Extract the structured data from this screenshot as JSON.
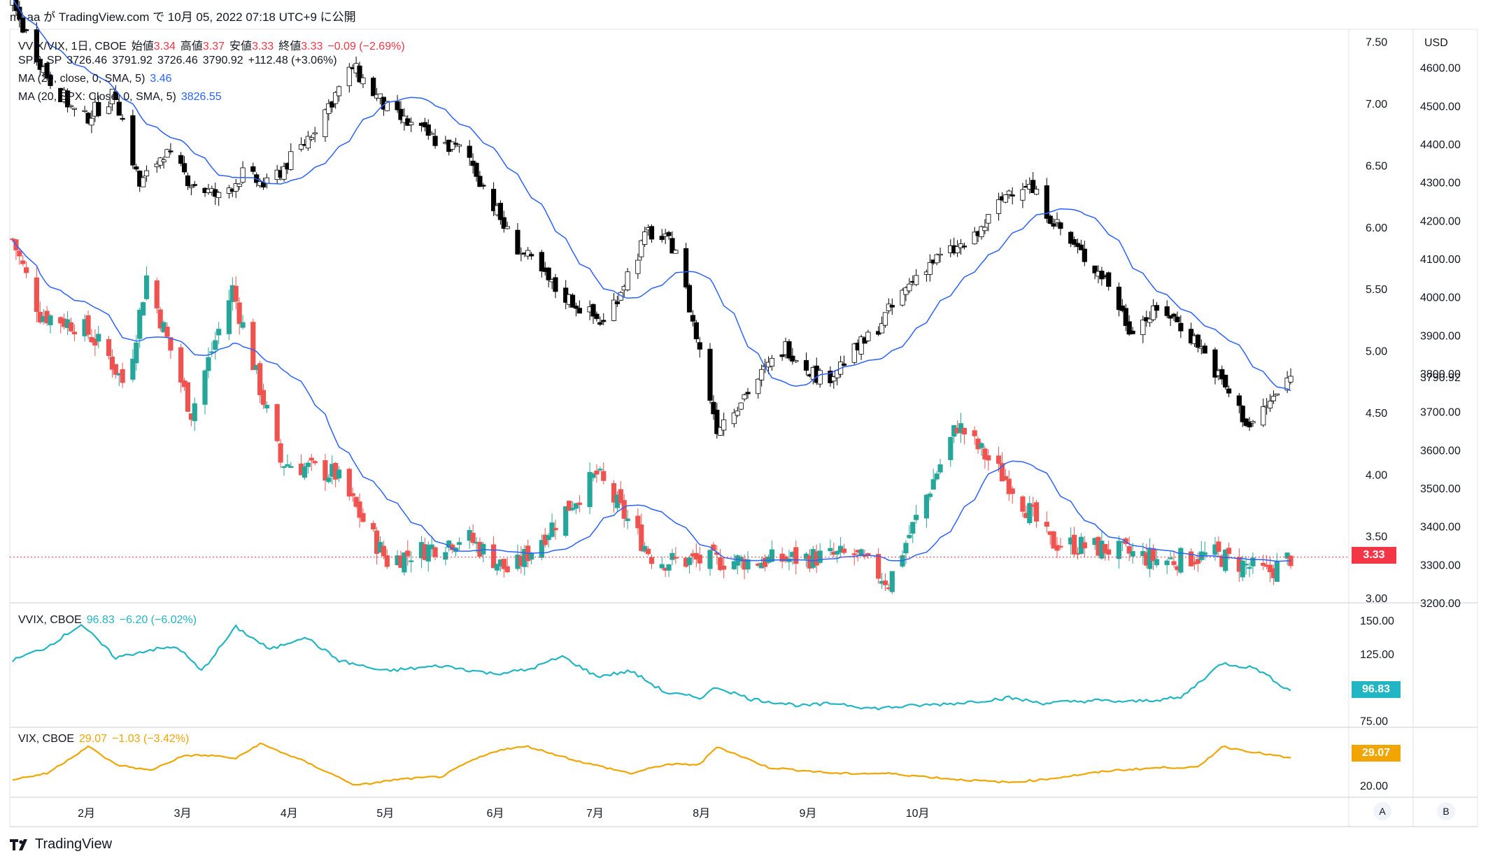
{
  "header": {
    "text": "mf-aa が TradingView.com で 10月 05, 2022 07:18 UTC+9 に公開"
  },
  "legend": {
    "main": {
      "symbol": "VVIX/VIX, 1日, CBOE",
      "open_label": "始値",
      "open": "3.34",
      "high_label": "高値",
      "high": "3.37",
      "low_label": "安値",
      "low": "3.33",
      "close_label": "終値",
      "close": "3.33",
      "change": "−0.09 (−2.69%)"
    },
    "spx": {
      "symbol": "SPX, SP",
      "o": "3726.46",
      "h": "3791.92",
      "l": "3726.46",
      "c": "3790.92",
      "chg": "+112.48 (+3.06%)"
    },
    "ma1": {
      "label": "MA (20, close, 0, SMA, 5)",
      "value": "3.46"
    },
    "ma2": {
      "label": "MA (20, SPX: Close, 0, SMA, 5)",
      "value": "3826.55"
    },
    "vvix": {
      "label": "VVIX, CBOE",
      "value": "96.83",
      "chg": "−6.20 (−6.02%)"
    },
    "vix": {
      "label": "VIX, CBOE",
      "value": "29.07",
      "chg": "−1.03 (−3.42%)"
    }
  },
  "axes": {
    "right1": [
      "7.50",
      "7.00",
      "6.50",
      "6.00",
      "5.50",
      "5.00",
      "4.50",
      "4.00",
      "3.50",
      "3.00"
    ],
    "right2_title": "USD",
    "right2": [
      "4600.00",
      "4500.00",
      "4400.00",
      "4300.00",
      "4200.00",
      "4100.00",
      "4000.00",
      "3900.00",
      "3800.00",
      "3700.00",
      "3600.00",
      "3500.00",
      "3400.00",
      "3300.00",
      "3200.00"
    ],
    "spx_last": "3790.92",
    "vvix_axis": [
      "150.00",
      "125.00",
      "75.00"
    ],
    "vix_axis": [
      "20.00"
    ],
    "months": [
      "2月",
      "3月",
      "4月",
      "5月",
      "6月",
      "7月",
      "8月",
      "9月",
      "10月"
    ],
    "buttons": [
      "A",
      "B"
    ]
  },
  "tags": {
    "ratio": "3.33",
    "vvix": "96.83",
    "vix": "29.07"
  },
  "colors": {
    "up": "#26a69a",
    "down": "#ef5350",
    "ma": "#2962ff",
    "vvix": "#22b5c4",
    "vix": "#f0a500",
    "grid": "#e0e3eb",
    "tag_ratio": "#f23645"
  },
  "brand": "TradingView",
  "chart_data": [
    {
      "type": "candlestick",
      "name": "VVIX/VIX",
      "anchors_day_value": [
        [
          0,
          5.9
        ],
        [
          8,
          5.3
        ],
        [
          20,
          5.2
        ],
        [
          27,
          5.0
        ],
        [
          33,
          4.7
        ],
        [
          39,
          5.6
        ],
        [
          52,
          4.5
        ],
        [
          64,
          5.5
        ],
        [
          78,
          4.1
        ],
        [
          94,
          4.0
        ],
        [
          109,
          3.3
        ],
        [
          132,
          3.5
        ],
        [
          145,
          3.2
        ],
        [
          170,
          4.0
        ],
        [
          187,
          3.3
        ],
        [
          200,
          3.3
        ],
        [
          218,
          3.3
        ],
        [
          245,
          3.35
        ],
        [
          255,
          3.13
        ],
        [
          275,
          4.4
        ],
        [
          291,
          3.9
        ],
        [
          302,
          3.45
        ],
        [
          318,
          3.4
        ],
        [
          335,
          3.3
        ],
        [
          350,
          3.35
        ],
        [
          365,
          3.2
        ],
        [
          372,
          3.33
        ]
      ],
      "ma_window": 20,
      "ylim": [
        3.0,
        7.6
      ]
    },
    {
      "type": "candlestick",
      "name": "SPX",
      "anchors_day_value": [
        [
          0,
          4760
        ],
        [
          10,
          4580
        ],
        [
          20,
          4460
        ],
        [
          30,
          4530
        ],
        [
          37,
          4290
        ],
        [
          44,
          4380
        ],
        [
          52,
          4300
        ],
        [
          60,
          4260
        ],
        [
          67,
          4320
        ],
        [
          74,
          4290
        ],
        [
          84,
          4390
        ],
        [
          99,
          4600
        ],
        [
          110,
          4480
        ],
        [
          125,
          4400
        ],
        [
          132,
          4380
        ],
        [
          145,
          4150
        ],
        [
          158,
          4020
        ],
        [
          172,
          3930
        ],
        [
          185,
          4170
        ],
        [
          193,
          4130
        ],
        [
          205,
          3660
        ],
        [
          225,
          3870
        ],
        [
          236,
          3780
        ],
        [
          250,
          3900
        ],
        [
          265,
          4080
        ],
        [
          280,
          4150
        ],
        [
          290,
          4280
        ],
        [
          295,
          4300
        ],
        [
          308,
          4140
        ],
        [
          318,
          4050
        ],
        [
          325,
          3920
        ],
        [
          335,
          3970
        ],
        [
          345,
          3880
        ],
        [
          360,
          3660
        ],
        [
          372,
          3790
        ]
      ],
      "ma_window": 20,
      "ylim": [
        3200,
        4700
      ]
    },
    {
      "type": "line",
      "name": "VVIX",
      "anchors_day_value": [
        [
          0,
          120
        ],
        [
          10,
          130
        ],
        [
          20,
          147
        ],
        [
          30,
          122
        ],
        [
          40,
          128
        ],
        [
          48,
          130
        ],
        [
          55,
          112
        ],
        [
          65,
          145
        ],
        [
          75,
          128
        ],
        [
          85,
          138
        ],
        [
          95,
          120
        ],
        [
          108,
          112
        ],
        [
          125,
          116
        ],
        [
          140,
          110
        ],
        [
          150,
          113
        ],
        [
          160,
          123
        ],
        [
          170,
          108
        ],
        [
          180,
          112
        ],
        [
          190,
          96
        ],
        [
          200,
          92
        ],
        [
          205,
          100
        ],
        [
          215,
          91
        ],
        [
          230,
          86
        ],
        [
          240,
          88
        ],
        [
          250,
          84
        ],
        [
          262,
          86
        ],
        [
          275,
          88
        ],
        [
          290,
          92
        ],
        [
          300,
          88
        ],
        [
          315,
          90
        ],
        [
          325,
          89
        ],
        [
          340,
          92
        ],
        [
          352,
          118
        ],
        [
          362,
          114
        ],
        [
          372,
          96.83
        ]
      ],
      "ylim": [
        72,
        160
      ]
    },
    {
      "type": "line",
      "name": "VIX",
      "anchors_day_value": [
        [
          0,
          22
        ],
        [
          10,
          24
        ],
        [
          22,
          33
        ],
        [
          30,
          27
        ],
        [
          40,
          25
        ],
        [
          50,
          30
        ],
        [
          58,
          30
        ],
        [
          65,
          29
        ],
        [
          72,
          34
        ],
        [
          85,
          28
        ],
        [
          100,
          20
        ],
        [
          112,
          22
        ],
        [
          125,
          23
        ],
        [
          133,
          28
        ],
        [
          142,
          32
        ],
        [
          150,
          33
        ],
        [
          165,
          28
        ],
        [
          180,
          24
        ],
        [
          190,
          27
        ],
        [
          200,
          27
        ],
        [
          205,
          33
        ],
        [
          220,
          26
        ],
        [
          240,
          24
        ],
        [
          255,
          24
        ],
        [
          275,
          22
        ],
        [
          290,
          21
        ],
        [
          300,
          22
        ],
        [
          320,
          25
        ],
        [
          335,
          26
        ],
        [
          345,
          26
        ],
        [
          352,
          33
        ],
        [
          362,
          31
        ],
        [
          372,
          29.07
        ]
      ],
      "ylim": [
        17,
        38
      ]
    }
  ]
}
